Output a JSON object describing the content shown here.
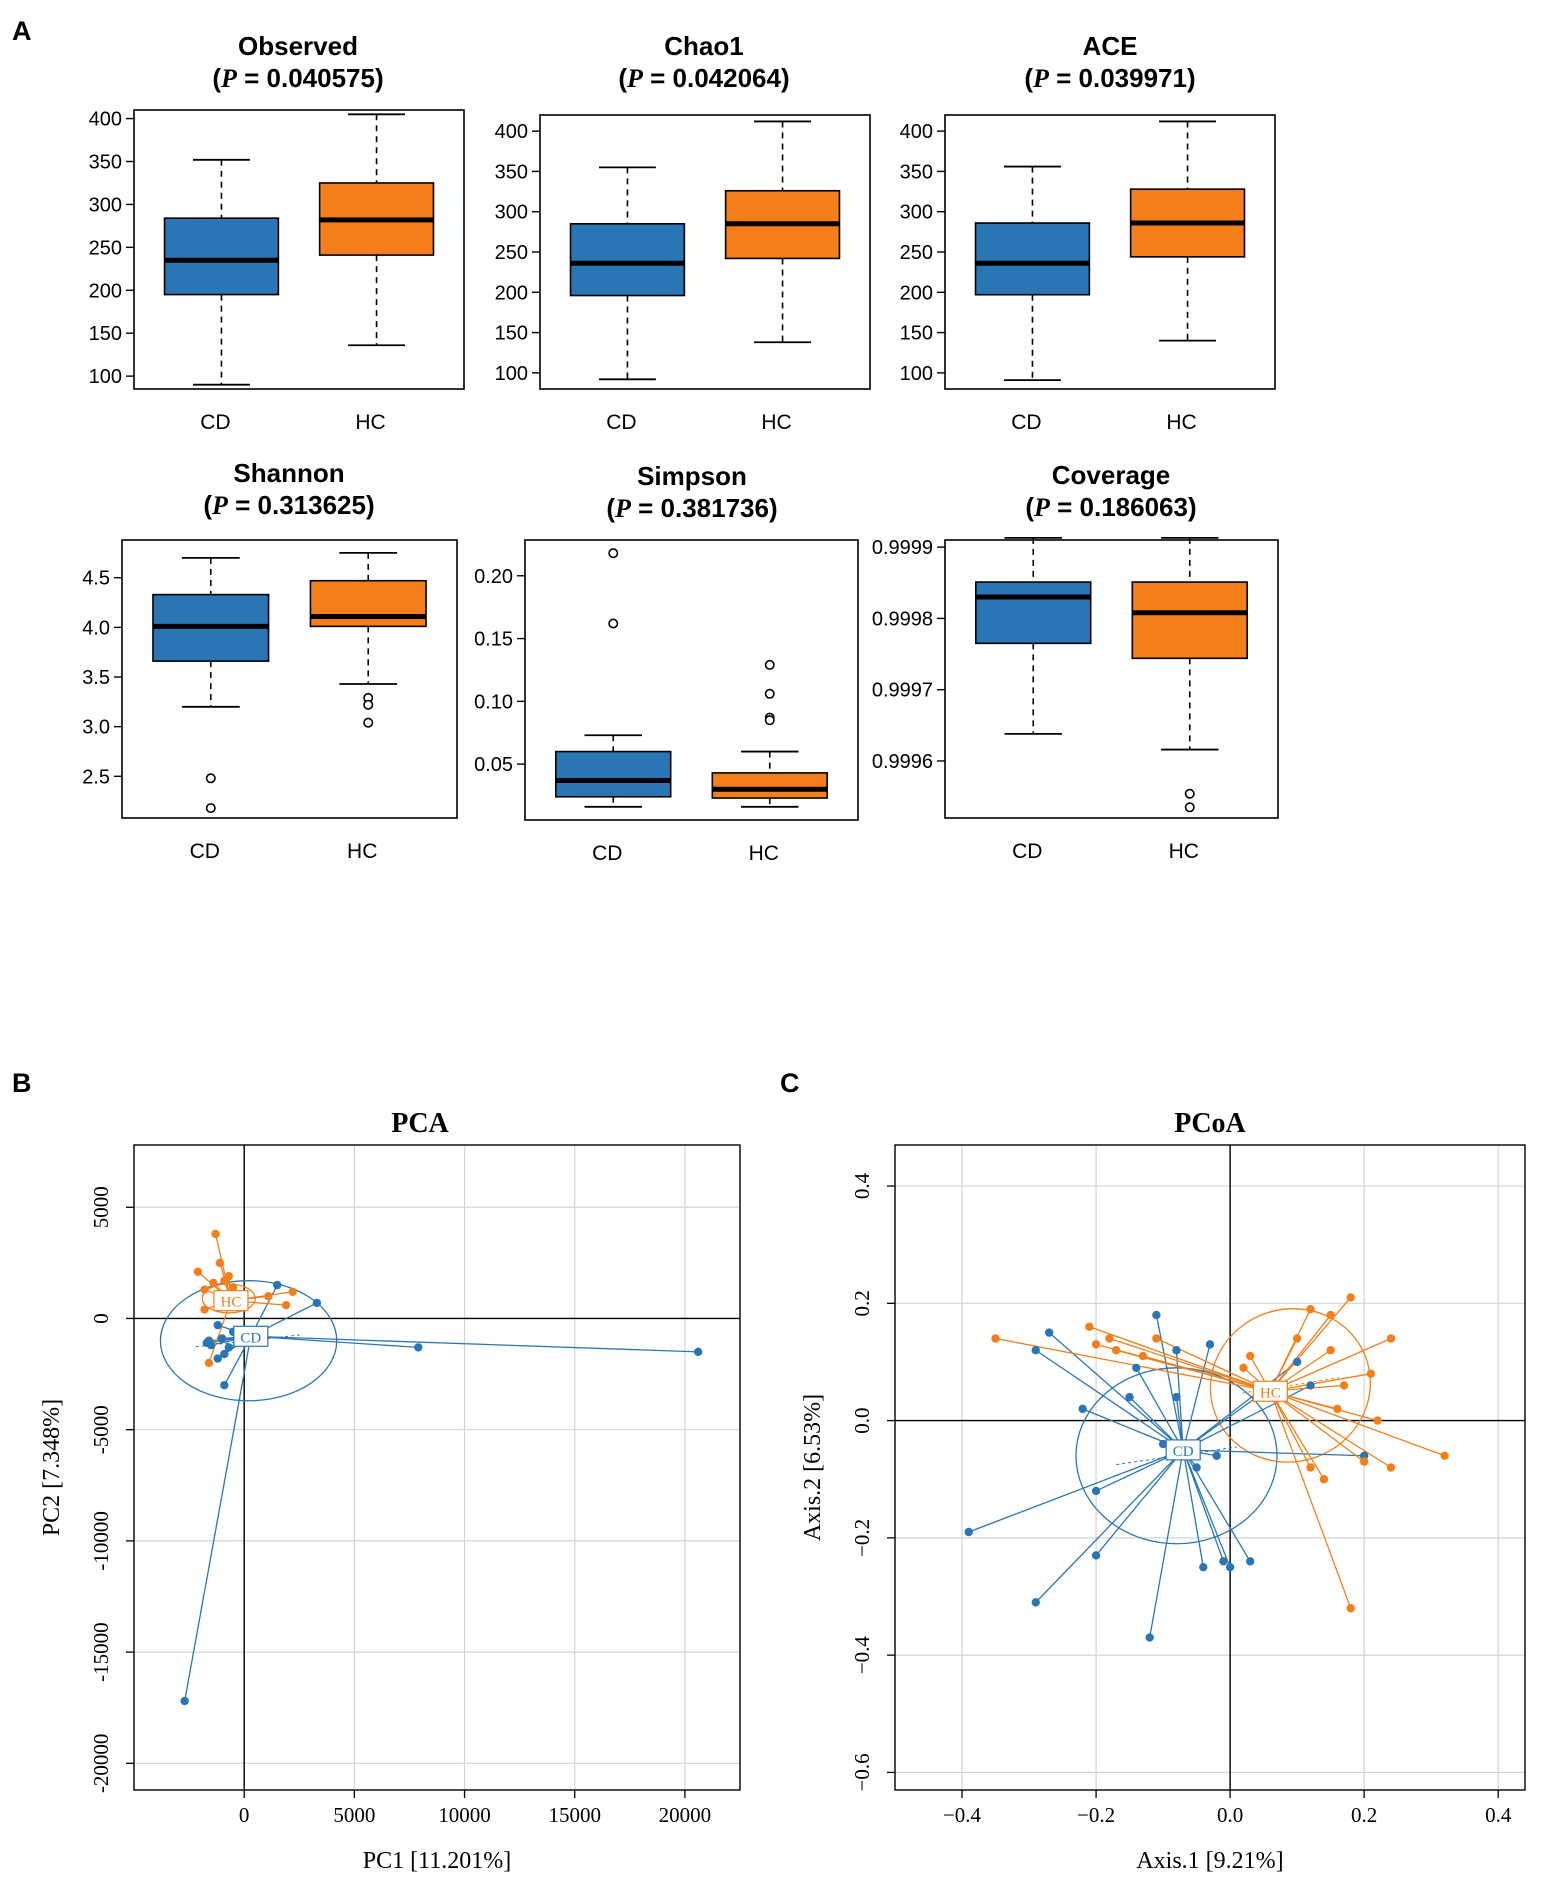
{
  "figure": {
    "colors": {
      "CD": "#2a76b4",
      "HC": "#f47f1a",
      "axis": "#000000",
      "grid": "#d4d4d4"
    },
    "panel_labels": {
      "A": "A",
      "B": "B",
      "C": "C"
    }
  },
  "chart_data": [
    {
      "id": "observed",
      "type": "box",
      "title": "Observed",
      "p_value": "0.040575",
      "categories": [
        "CD",
        "HC"
      ],
      "ylim": [
        85,
        410
      ],
      "yticks": [
        100,
        150,
        200,
        250,
        300,
        350,
        400
      ],
      "ytick_labels": [
        "100",
        "150",
        "200",
        "250",
        "300",
        "350",
        "400"
      ],
      "boxes": [
        {
          "group": "CD",
          "min": 90,
          "q1": 195,
          "median": 235,
          "q3": 284,
          "max": 352,
          "outliers": []
        },
        {
          "group": "HC",
          "min": 136,
          "q1": 241,
          "median": 282,
          "q3": 325,
          "max": 405,
          "outliers": []
        }
      ]
    },
    {
      "id": "chao1",
      "type": "box",
      "title": "Chao1",
      "p_value": "0.042064",
      "categories": [
        "CD",
        "HC"
      ],
      "ylim": [
        80,
        420
      ],
      "yticks": [
        100,
        150,
        200,
        250,
        300,
        350,
        400
      ],
      "ytick_labels": [
        "100",
        "150",
        "200",
        "250",
        "300",
        "350",
        "400"
      ],
      "boxes": [
        {
          "group": "CD",
          "min": 92,
          "q1": 196,
          "median": 236,
          "q3": 285,
          "max": 355,
          "outliers": []
        },
        {
          "group": "HC",
          "min": 138,
          "q1": 242,
          "median": 285,
          "q3": 326,
          "max": 412,
          "outliers": []
        }
      ]
    },
    {
      "id": "ace",
      "type": "box",
      "title": "ACE",
      "p_value": "0.039971",
      "categories": [
        "CD",
        "HC"
      ],
      "ylim": [
        80,
        420
      ],
      "yticks": [
        100,
        150,
        200,
        250,
        300,
        350,
        400
      ],
      "ytick_labels": [
        "100",
        "150",
        "200",
        "250",
        "300",
        "350",
        "400"
      ],
      "boxes": [
        {
          "group": "CD",
          "min": 91,
          "q1": 197,
          "median": 236,
          "q3": 286,
          "max": 356,
          "outliers": []
        },
        {
          "group": "HC",
          "min": 140,
          "q1": 244,
          "median": 286,
          "q3": 328,
          "max": 412,
          "outliers": []
        }
      ]
    },
    {
      "id": "shannon",
      "type": "box",
      "title": "Shannon",
      "p_value": "0.313625",
      "categories": [
        "CD",
        "HC"
      ],
      "ylim": [
        2.08,
        4.88
      ],
      "yticks": [
        2.5,
        3.0,
        3.5,
        4.0,
        4.5
      ],
      "ytick_labels": [
        "2.5",
        "3.0",
        "3.5",
        "4.0",
        "4.5"
      ],
      "boxes": [
        {
          "group": "CD",
          "min": 3.2,
          "q1": 3.66,
          "median": 4.01,
          "q3": 4.33,
          "max": 4.7,
          "outliers": [
            2.48,
            2.18
          ]
        },
        {
          "group": "HC",
          "min": 3.43,
          "q1": 4.01,
          "median": 4.11,
          "q3": 4.47,
          "max": 4.75,
          "outliers": [
            3.29,
            3.22,
            3.04
          ]
        }
      ]
    },
    {
      "id": "simpson",
      "type": "box",
      "title": "Simpson",
      "p_value": "0.381736",
      "categories": [
        "CD",
        "HC"
      ],
      "ylim": [
        0.0055,
        0.2285
      ],
      "yticks": [
        0.05,
        0.1,
        0.15,
        0.2
      ],
      "ytick_labels": [
        "0.05",
        "0.10",
        "0.15",
        "0.20"
      ],
      "boxes": [
        {
          "group": "CD",
          "min": 0.016,
          "q1": 0.024,
          "median": 0.037,
          "q3": 0.06,
          "max": 0.073,
          "outliers": [
            0.218,
            0.162
          ]
        },
        {
          "group": "HC",
          "min": 0.016,
          "q1": 0.023,
          "median": 0.03,
          "q3": 0.043,
          "max": 0.06,
          "outliers": [
            0.129,
            0.106,
            0.087,
            0.085
          ]
        }
      ]
    },
    {
      "id": "coverage",
      "type": "box",
      "title": "Coverage",
      "p_value": "0.186063",
      "categories": [
        "CD",
        "HC"
      ],
      "ylim": [
        0.99952,
        0.99991
      ],
      "yticks": [
        0.9996,
        0.9997,
        0.9998,
        0.9999
      ],
      "ytick_labels": [
        "0.9996",
        "0.9997",
        "0.9998",
        "0.9999"
      ],
      "boxes": [
        {
          "group": "CD",
          "min": 0.999638,
          "q1": 0.999765,
          "median": 0.99983,
          "q3": 0.999851,
          "max": 0.999913,
          "outliers": []
        },
        {
          "group": "HC",
          "min": 0.999616,
          "q1": 0.999744,
          "median": 0.999808,
          "q3": 0.999851,
          "max": 0.999913,
          "outliers": [
            0.999554,
            0.999535
          ]
        }
      ]
    },
    {
      "id": "pca",
      "type": "scatter",
      "title": "PCA",
      "xlabel": "PC1 [11.201%]",
      "ylabel": "PC2 [7.348%]",
      "xlim": [
        -5000,
        22500
      ],
      "ylim": [
        -21200,
        7800
      ],
      "xticks": [
        0,
        5000,
        10000,
        15000,
        20000
      ],
      "xtick_labels": [
        "0",
        "5000",
        "10000",
        "15000",
        "20000"
      ],
      "yticks": [
        -20000,
        -15000,
        -10000,
        -5000,
        0,
        5000
      ],
      "ytick_labels": [
        "-20000",
        "-15000",
        "-10000",
        "-5000",
        "0",
        "5000"
      ],
      "grid": true,
      "centroids": {
        "CD": [
          300,
          -800
        ],
        "HC": [
          -600,
          800
        ]
      },
      "ellipses": [
        {
          "group": "CD",
          "cx": 200,
          "cy": -1000,
          "rx": 4000,
          "ry": 2700,
          "angle": 0
        },
        {
          "group": "HC",
          "cx": -700,
          "cy": 900,
          "rx": 1200,
          "ry": 650,
          "angle": 0
        }
      ],
      "series": [
        {
          "name": "CD",
          "points": [
            [
              -2700,
              -17200
            ],
            [
              20600,
              -1500
            ],
            [
              7900,
              -1300
            ],
            [
              3300,
              700
            ],
            [
              1500,
              1500
            ],
            [
              -1500,
              -1200
            ],
            [
              -1200,
              -1800
            ],
            [
              -900,
              -1600
            ],
            [
              -1600,
              -1000
            ],
            [
              -1000,
              -900
            ],
            [
              -900,
              -3000
            ],
            [
              -700,
              -1300
            ],
            [
              -500,
              -600
            ],
            [
              -1200,
              -300
            ],
            [
              -1700,
              -1100
            ]
          ]
        },
        {
          "name": "HC",
          "points": [
            [
              -1300,
              3800
            ],
            [
              -2100,
              2100
            ],
            [
              -1100,
              2500
            ],
            [
              -900,
              1700
            ],
            [
              -700,
              1900
            ],
            [
              -500,
              1400
            ],
            [
              -1800,
              400
            ],
            [
              -1600,
              -2000
            ],
            [
              1100,
              1000
            ],
            [
              1900,
              600
            ],
            [
              2200,
              1200
            ],
            [
              -1800,
              1300
            ],
            [
              -1400,
              1600
            ]
          ]
        }
      ]
    },
    {
      "id": "pcoa",
      "type": "scatter",
      "title": "PCoA",
      "xlabel": "Axis.1  [9.21%]",
      "ylabel": "Axis.2  [6.53%]",
      "xlim": [
        -0.5,
        0.44
      ],
      "ylim": [
        -0.63,
        0.47
      ],
      "xticks": [
        -0.4,
        -0.2,
        0.0,
        0.2,
        0.4
      ],
      "xtick_labels": [
        "−0.4",
        "−0.2",
        "0.0",
        "0.2",
        "0.4"
      ],
      "yticks": [
        -0.6,
        -0.4,
        -0.2,
        0.0,
        0.2,
        0.4
      ],
      "ytick_labels": [
        "−0.6",
        "−0.4",
        "−0.2",
        "0.0",
        "0.2",
        "0.4"
      ],
      "grid": true,
      "centroids": {
        "CD": [
          -0.07,
          -0.05
        ],
        "HC": [
          0.06,
          0.05
        ]
      },
      "ellipses": [
        {
          "group": "CD",
          "cx": -0.08,
          "cy": -0.06,
          "rx": 0.15,
          "ry": 0.15,
          "angle": 0
        },
        {
          "group": "HC",
          "cx": 0.09,
          "cy": 0.06,
          "rx": 0.12,
          "ry": 0.13,
          "angle": -20
        }
      ],
      "series": [
        {
          "name": "CD",
          "points": [
            [
              -0.39,
              -0.19
            ],
            [
              -0.29,
              -0.31
            ],
            [
              -0.2,
              -0.23
            ],
            [
              -0.12,
              -0.37
            ],
            [
              -0.2,
              -0.12
            ],
            [
              -0.22,
              0.02
            ],
            [
              -0.15,
              0.04
            ],
            [
              -0.14,
              0.09
            ],
            [
              -0.08,
              0.12
            ],
            [
              -0.08,
              0.04
            ],
            [
              -0.11,
              0.18
            ],
            [
              -0.03,
              0.13
            ],
            [
              -0.04,
              -0.25
            ],
            [
              -0.01,
              -0.24
            ],
            [
              0.0,
              -0.25
            ],
            [
              0.03,
              -0.24
            ],
            [
              0.2,
              -0.06
            ],
            [
              0.12,
              0.06
            ],
            [
              0.1,
              0.1
            ],
            [
              -0.05,
              -0.08
            ],
            [
              -0.02,
              -0.06
            ],
            [
              -0.27,
              0.15
            ],
            [
              -0.29,
              0.12
            ],
            [
              -0.1,
              -0.04
            ],
            [
              0.04,
              0.04
            ]
          ]
        },
        {
          "name": "HC",
          "points": [
            [
              0.18,
              0.21
            ],
            [
              0.12,
              0.19
            ],
            [
              0.15,
              0.18
            ],
            [
              0.24,
              0.14
            ],
            [
              0.32,
              -0.06
            ],
            [
              0.24,
              -0.08
            ],
            [
              0.2,
              -0.07
            ],
            [
              0.18,
              -0.32
            ],
            [
              0.14,
              -0.1
            ],
            [
              0.12,
              -0.08
            ],
            [
              0.08,
              0.06
            ],
            [
              0.03,
              0.11
            ],
            [
              0.02,
              0.09
            ],
            [
              -0.11,
              0.14
            ],
            [
              -0.13,
              0.11
            ],
            [
              -0.17,
              0.12
            ],
            [
              -0.18,
              0.14
            ],
            [
              -0.21,
              0.16
            ],
            [
              -0.2,
              0.13
            ],
            [
              -0.35,
              0.14
            ],
            [
              0.22,
              0.0
            ],
            [
              0.16,
              0.02
            ],
            [
              0.17,
              0.06
            ],
            [
              0.21,
              0.08
            ],
            [
              0.15,
              0.12
            ],
            [
              0.1,
              0.14
            ]
          ]
        }
      ]
    }
  ]
}
